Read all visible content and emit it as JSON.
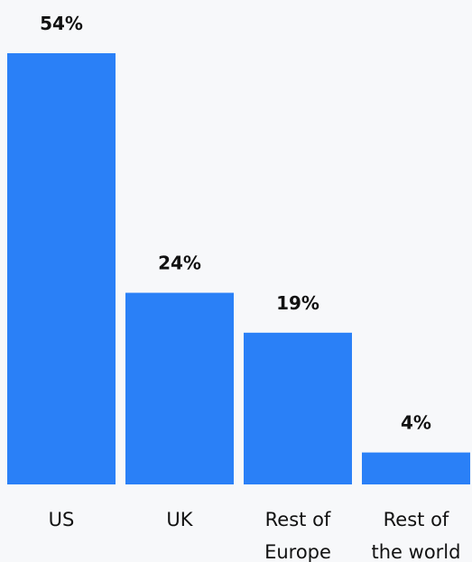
{
  "chart_data": {
    "type": "bar",
    "categories": [
      [
        "US"
      ],
      [
        "UK"
      ],
      [
        "Rest of",
        "Europe"
      ],
      [
        "Rest of",
        "the world"
      ]
    ],
    "values": [
      54,
      24,
      19,
      4
    ],
    "value_labels": [
      "54%",
      "24%",
      "19%",
      "4%"
    ],
    "title": "",
    "xlabel": "",
    "ylabel": "",
    "ylim": [
      0,
      54
    ],
    "grid": false,
    "legend": "none",
    "bar_color": "#2a80f7"
  }
}
